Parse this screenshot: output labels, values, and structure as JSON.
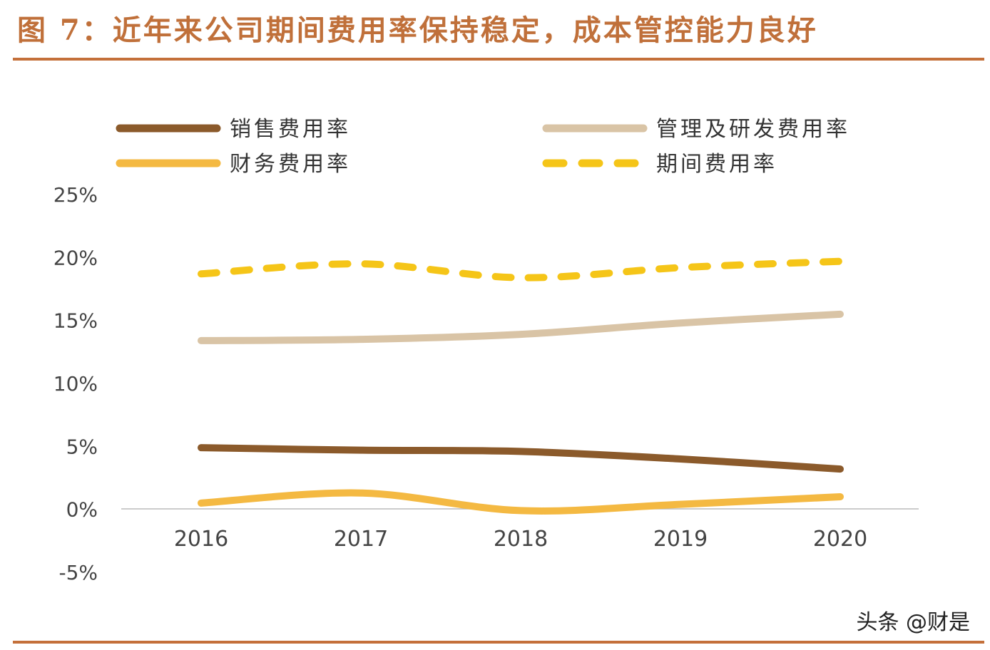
{
  "figure": {
    "title": "图 7：近年来公司期间费用率保持稳定，成本管控能力良好",
    "watermark": "头条 @财是"
  },
  "colors": {
    "title": "#c0703a",
    "rule": "#c4703a",
    "axis": "#bbbbbb"
  },
  "chart_data": {
    "type": "line",
    "x": [
      "2016",
      "2017",
      "2018",
      "2019",
      "2020"
    ],
    "ylim": [
      -5,
      25
    ],
    "yticks": [
      -5,
      0,
      5,
      10,
      15,
      20,
      25
    ],
    "ytick_labels": [
      "-5%",
      "0%",
      "5%",
      "10%",
      "15%",
      "20%",
      "25%"
    ],
    "grid": false,
    "legend_position": "top",
    "series": [
      {
        "name": "销售费用率",
        "values": [
          4.9,
          4.7,
          4.6,
          4.0,
          3.2
        ],
        "color": "#8b5a2b",
        "style": "solid"
      },
      {
        "name": "管理及研发费用率",
        "values": [
          13.4,
          13.5,
          13.9,
          14.8,
          15.5
        ],
        "color": "#d9c4a6",
        "style": "solid"
      },
      {
        "name": "财务费用率",
        "values": [
          0.5,
          1.3,
          -0.1,
          0.4,
          1.0
        ],
        "color": "#f4b942",
        "style": "solid"
      },
      {
        "name": "期间费用率",
        "values": [
          18.7,
          19.5,
          18.4,
          19.2,
          19.7
        ],
        "color": "#f5c518",
        "style": "dashed"
      }
    ]
  }
}
